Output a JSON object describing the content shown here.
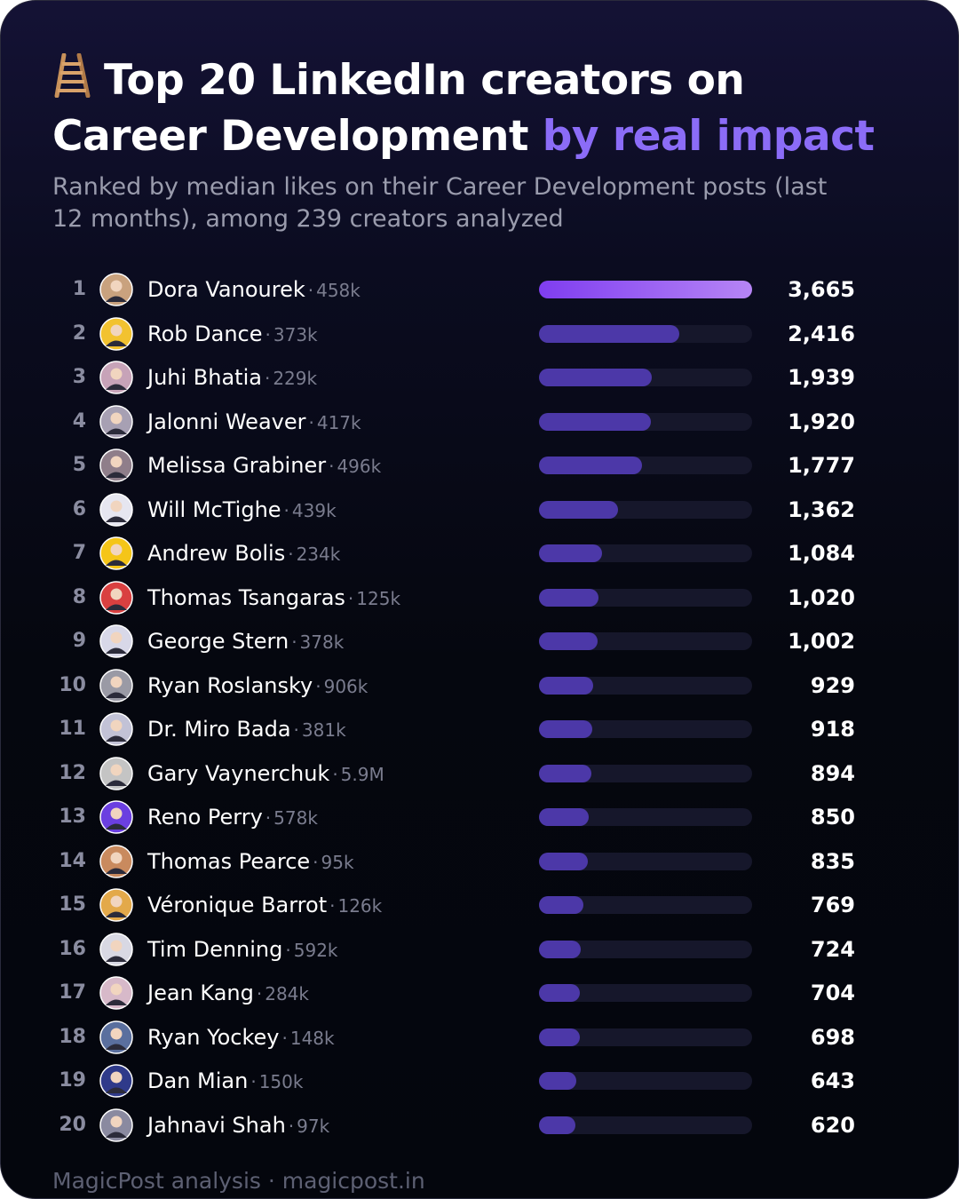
{
  "title": {
    "icon": "ladder-icon",
    "main": "Top 20 LinkedIn creators on Career Development",
    "accent": "by real impact"
  },
  "subtitle": "Ranked by median likes on their Career Development posts (last 12 months), among 239 creators analyzed",
  "separator": "·",
  "footer": "MagicPost analysis · magicpost.in",
  "colors": {
    "accent": "#8b6cf7",
    "bar": "#4c38a8",
    "bar_top_start": "#7f3df0",
    "bar_top_end": "#b685f5",
    "track": "#16172b"
  },
  "chart_data": {
    "type": "bar",
    "orientation": "horizontal",
    "xlim": [
      0,
      3665
    ],
    "rows": [
      {
        "rank": "1",
        "name": "Dora Vanourek",
        "followers": "458k",
        "value": 3665,
        "label": "3,665"
      },
      {
        "rank": "2",
        "name": "Rob Dance",
        "followers": "373k",
        "value": 2416,
        "label": "2,416"
      },
      {
        "rank": "3",
        "name": "Juhi Bhatia",
        "followers": "229k",
        "value": 1939,
        "label": "1,939"
      },
      {
        "rank": "4",
        "name": "Jalonni Weaver",
        "followers": "417k",
        "value": 1920,
        "label": "1,920"
      },
      {
        "rank": "5",
        "name": "Melissa Grabiner",
        "followers": "496k",
        "value": 1777,
        "label": "1,777"
      },
      {
        "rank": "6",
        "name": "Will McTighe",
        "followers": "439k",
        "value": 1362,
        "label": "1,362"
      },
      {
        "rank": "7",
        "name": "Andrew Bolis",
        "followers": "234k",
        "value": 1084,
        "label": "1,084"
      },
      {
        "rank": "8",
        "name": "Thomas Tsangaras",
        "followers": "125k",
        "value": 1020,
        "label": "1,020"
      },
      {
        "rank": "9",
        "name": "George Stern",
        "followers": "378k",
        "value": 1002,
        "label": "1,002"
      },
      {
        "rank": "10",
        "name": "Ryan Roslansky",
        "followers": "906k",
        "value": 929,
        "label": "929"
      },
      {
        "rank": "11",
        "name": "Dr. Miro Bada",
        "followers": "381k",
        "value": 918,
        "label": "918"
      },
      {
        "rank": "12",
        "name": "Gary Vaynerchuk",
        "followers": "5.9M",
        "value": 894,
        "label": "894"
      },
      {
        "rank": "13",
        "name": "Reno Perry",
        "followers": "578k",
        "value": 850,
        "label": "850"
      },
      {
        "rank": "14",
        "name": "Thomas Pearce",
        "followers": "95k",
        "value": 835,
        "label": "835"
      },
      {
        "rank": "15",
        "name": "Véronique Barrot",
        "followers": "126k",
        "value": 769,
        "label": "769"
      },
      {
        "rank": "16",
        "name": "Tim Denning",
        "followers": "592k",
        "value": 724,
        "label": "724"
      },
      {
        "rank": "17",
        "name": "Jean Kang",
        "followers": "284k",
        "value": 704,
        "label": "704"
      },
      {
        "rank": "18",
        "name": "Ryan Yockey",
        "followers": "148k",
        "value": 698,
        "label": "698"
      },
      {
        "rank": "19",
        "name": "Dan Mian",
        "followers": "150k",
        "value": 643,
        "label": "643"
      },
      {
        "rank": "20",
        "name": "Jahnavi Shah",
        "followers": "97k",
        "value": 620,
        "label": "620"
      }
    ],
    "avatar_colors": [
      "#c9a27e",
      "#f2c230",
      "#c7a3b8",
      "#a7a0b3",
      "#8f7e8a",
      "#e6e6f0",
      "#f5c518",
      "#d94040",
      "#d8d8e8",
      "#9a9aa5",
      "#c2c2d6",
      "#c4c4c4",
      "#6b3fe0",
      "#c98a5e",
      "#e3a94a",
      "#d8d8e3",
      "#d7b9c9",
      "#5a6f9e",
      "#2f3a8a",
      "#8a8aa0"
    ]
  }
}
